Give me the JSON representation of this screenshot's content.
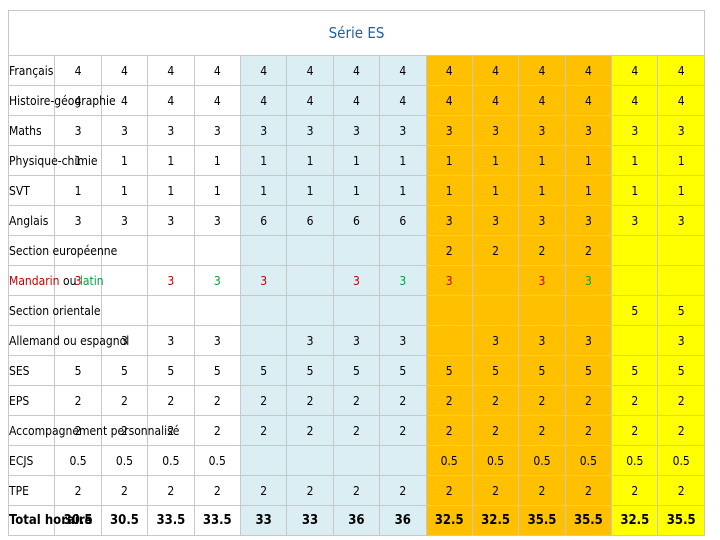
{
  "title": "Série ES",
  "table": {
    "rows": [
      {
        "label": "Français",
        "values": [
          4,
          4,
          4,
          4,
          4,
          4,
          4,
          4,
          4,
          4,
          4,
          4,
          4,
          4
        ]
      },
      {
        "label": "Histoire-géographie",
        "values": [
          4,
          4,
          4,
          4,
          4,
          4,
          4,
          4,
          4,
          4,
          4,
          4,
          4,
          4
        ]
      },
      {
        "label": "Maths",
        "values": [
          3,
          3,
          3,
          3,
          3,
          3,
          3,
          3,
          3,
          3,
          3,
          3,
          3,
          3
        ]
      },
      {
        "label": "Physique-chimie",
        "values": [
          1,
          1,
          1,
          1,
          1,
          1,
          1,
          1,
          1,
          1,
          1,
          1,
          1,
          1
        ]
      },
      {
        "label": "SVT",
        "values": [
          1,
          1,
          1,
          1,
          1,
          1,
          1,
          1,
          1,
          1,
          1,
          1,
          1,
          1
        ]
      },
      {
        "label": "Anglais",
        "values": [
          3,
          3,
          3,
          3,
          6,
          6,
          6,
          6,
          3,
          3,
          3,
          3,
          3,
          3
        ]
      },
      {
        "label": "Section européenne",
        "values": [
          null,
          null,
          null,
          null,
          null,
          null,
          null,
          null,
          2,
          2,
          2,
          2,
          null,
          null
        ]
      },
      {
        "label_parts": [
          {
            "text": "Mandarin",
            "color": "#c00000"
          },
          {
            "text": "ou",
            "color": "#000000"
          },
          {
            "text": "latin",
            "color": "#00a040"
          }
        ],
        "values": [
          3,
          null,
          3,
          3,
          3,
          null,
          3,
          3,
          3,
          null,
          3,
          3,
          null,
          null
        ],
        "colors": [
          "#c00000",
          null,
          "#c00000",
          "#00a040",
          "#c00000",
          null,
          "#c00000",
          "#00a040",
          "#c00000",
          null,
          "#c00000",
          "#00a040",
          null,
          null
        ]
      },
      {
        "label": "Section orientale",
        "values": [
          null,
          null,
          null,
          null,
          null,
          null,
          null,
          null,
          null,
          null,
          null,
          null,
          5,
          5
        ]
      },
      {
        "label": "Allemand ou espagnol",
        "values": [
          null,
          3,
          3,
          3,
          null,
          3,
          3,
          3,
          null,
          3,
          3,
          3,
          null,
          3
        ]
      },
      {
        "label": "SES",
        "values": [
          5,
          5,
          5,
          5,
          5,
          5,
          5,
          5,
          5,
          5,
          5,
          5,
          5,
          5
        ]
      },
      {
        "label": "EPS",
        "values": [
          2,
          2,
          2,
          2,
          2,
          2,
          2,
          2,
          2,
          2,
          2,
          2,
          2,
          2
        ]
      },
      {
        "label": "Accompagnement personnalisé",
        "values": [
          2,
          2,
          2,
          2,
          2,
          2,
          2,
          2,
          2,
          2,
          2,
          2,
          2,
          2
        ]
      },
      {
        "label": "ECJS",
        "values": [
          0.5,
          0.5,
          0.5,
          0.5,
          null,
          null,
          null,
          null,
          0.5,
          0.5,
          0.5,
          0.5,
          0.5,
          0.5
        ]
      },
      {
        "label": "TPE",
        "values": [
          2,
          2,
          2,
          2,
          2,
          2,
          2,
          2,
          2,
          2,
          2,
          2,
          2,
          2
        ]
      },
      {
        "label": "Total horaire",
        "values": [
          30.5,
          30.5,
          33.5,
          33.5,
          33,
          33,
          36,
          36,
          32.5,
          32.5,
          35.5,
          35.5,
          32.5,
          35.5
        ],
        "total": true
      }
    ]
  }
}
